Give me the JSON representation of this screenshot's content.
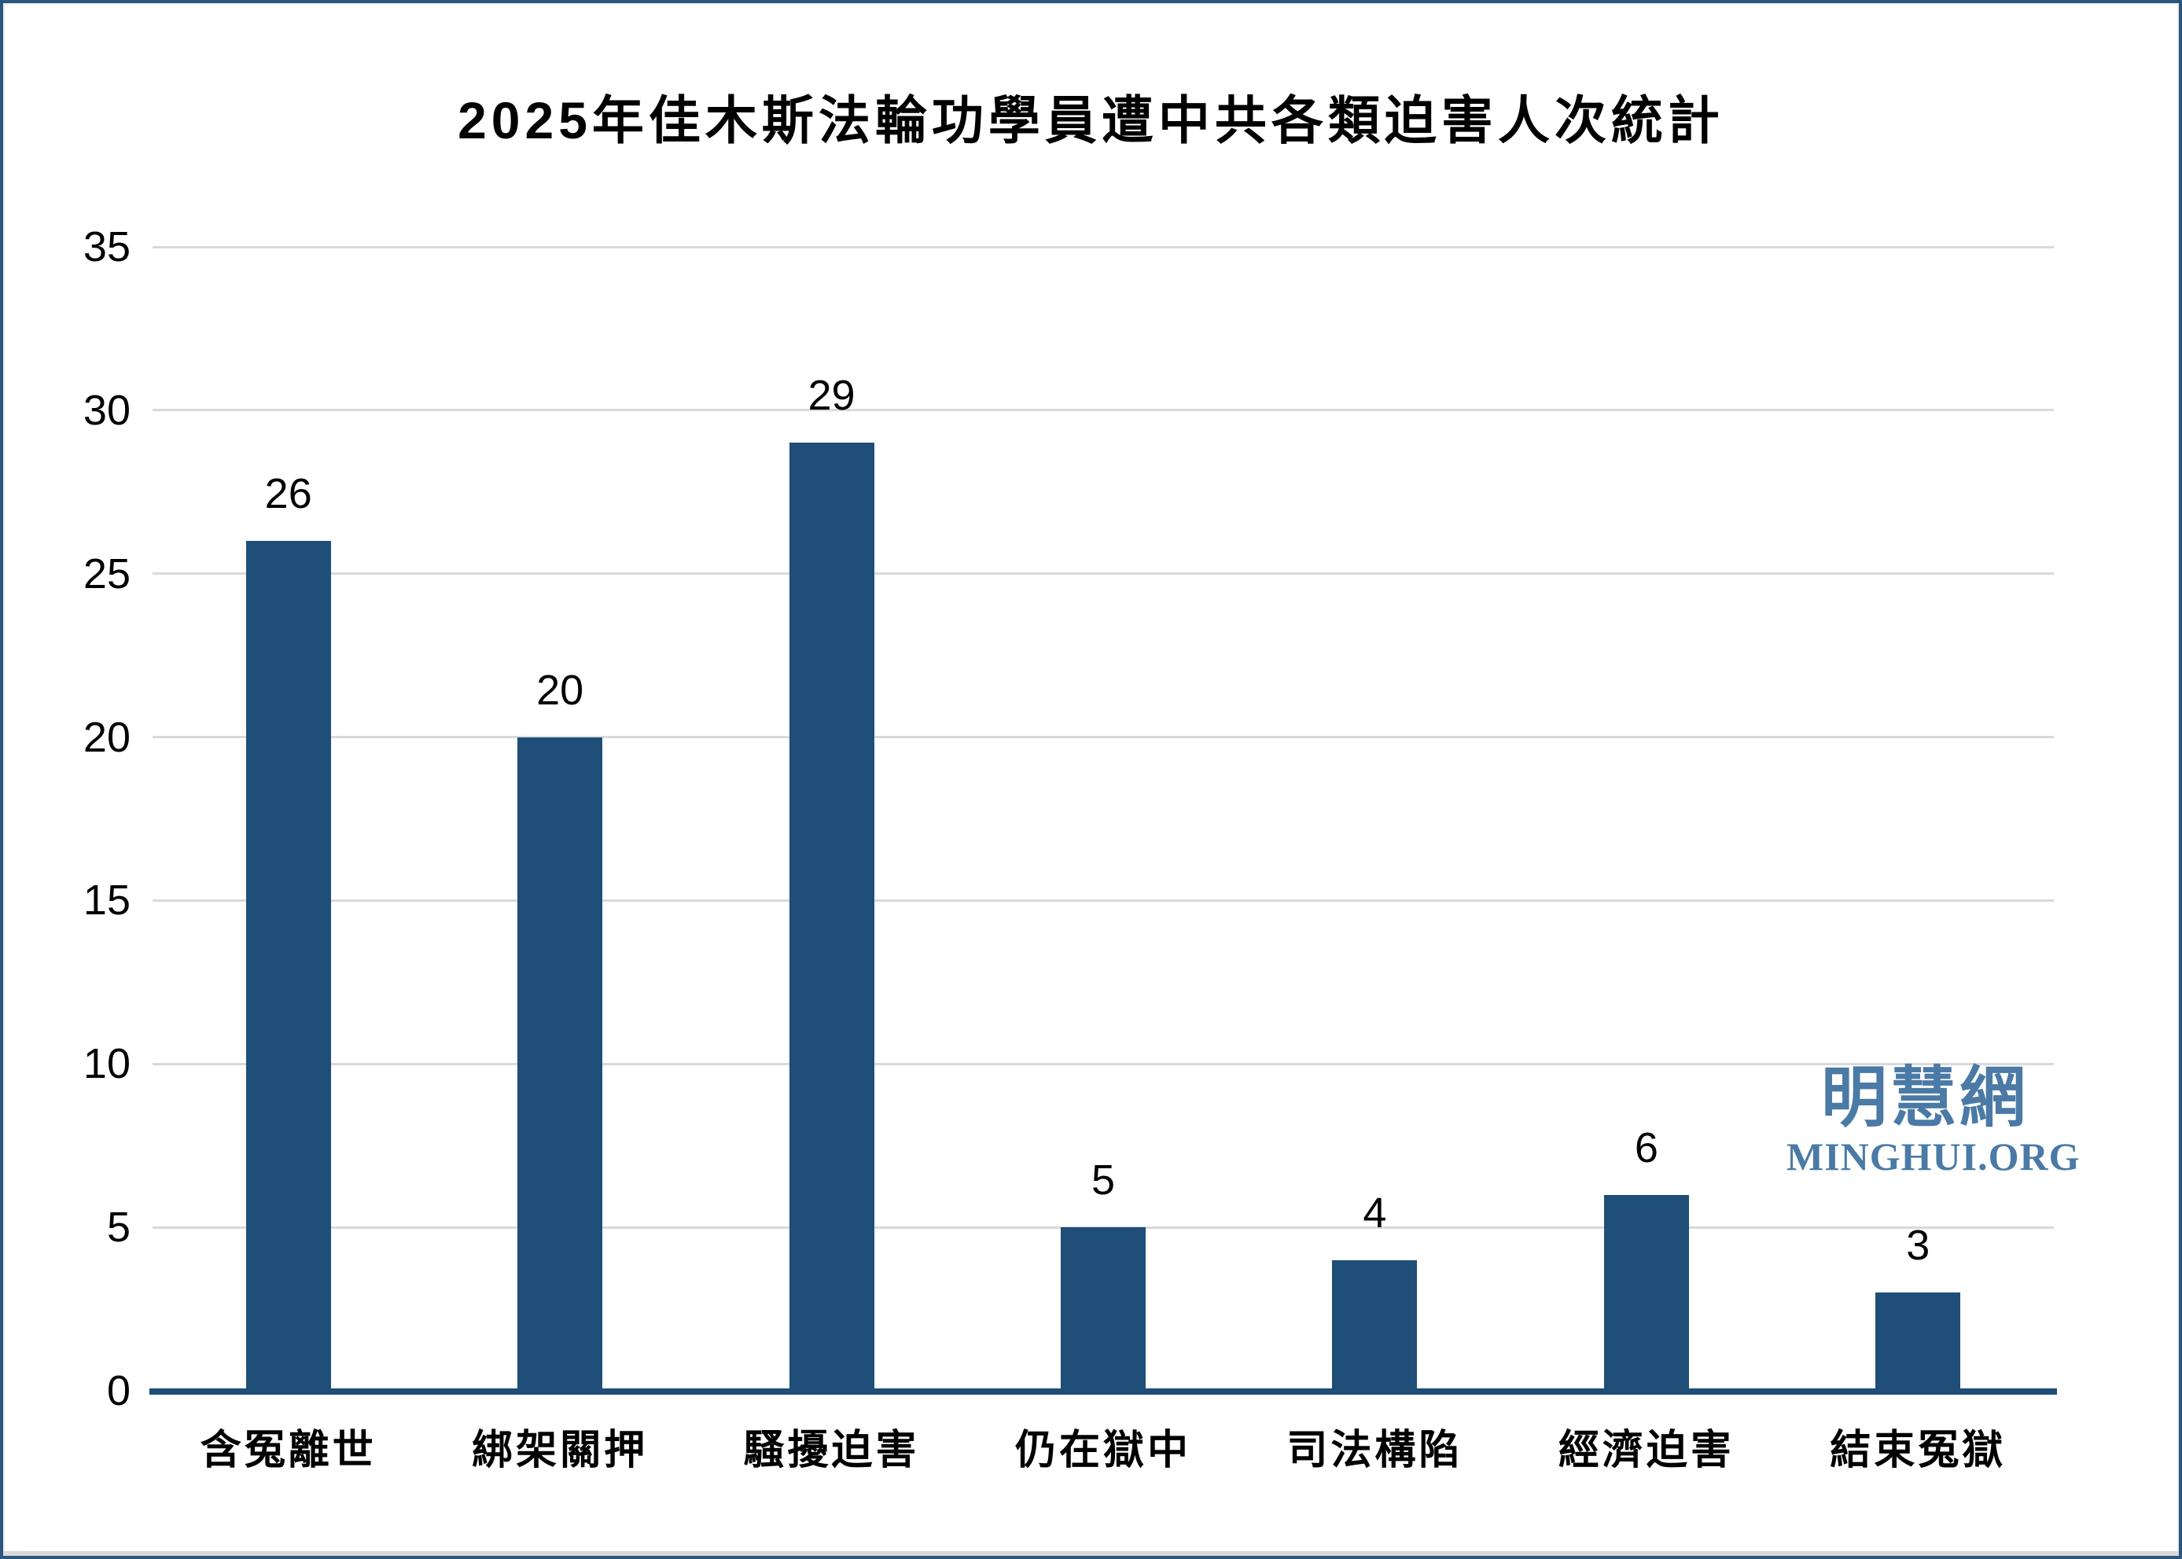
{
  "chart_data": {
    "type": "bar",
    "title": "2025年佳木斯法輪功學員遭中共各類迫害人次統計",
    "categories": [
      "含冤離世",
      "綁架關押",
      "騷擾迫害",
      "仍在獄中",
      "司法構陷",
      "經濟迫害",
      "結束冤獄"
    ],
    "values": [
      26,
      20,
      29,
      5,
      4,
      6,
      3
    ],
    "xlabel": "",
    "ylabel": "",
    "ylim": [
      0,
      35
    ],
    "yticks": [
      0,
      5,
      10,
      15,
      20,
      25,
      30,
      35
    ],
    "grid": true,
    "legend": false,
    "bar_color": "#1f4e79"
  },
  "watermark": {
    "cjk": "明慧網",
    "latin": "MINGHUI.ORG",
    "color": "#4a7aa5"
  },
  "colors": {
    "bar": "#1f4e79",
    "axis": "#1f4e79",
    "grid": "#d9d9d9",
    "text": "#000000",
    "border": "#2a567f"
  }
}
